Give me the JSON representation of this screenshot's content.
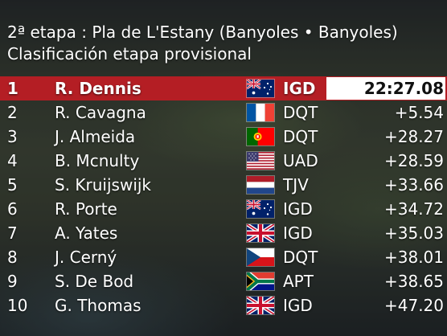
{
  "header": {
    "stage": "2ª etapa : Pla de L'Estany (Banyoles • Banyoles)",
    "classification": "Clasificación etapa provisional"
  },
  "colors": {
    "leader_background": "#b41e24",
    "time_box": "#ffffff"
  },
  "riders": [
    {
      "position": "1",
      "name": "R. Dennis",
      "flag": "australia-flag-icon",
      "team": "IGD",
      "time": "22:27.08"
    },
    {
      "position": "2",
      "name": "R. Cavagna",
      "flag": "france-flag-icon",
      "team": "DQT",
      "time": "+5.54"
    },
    {
      "position": "3",
      "name": "J. Almeida",
      "flag": "portugal-flag-icon",
      "team": "DQT",
      "time": "+28.27"
    },
    {
      "position": "4",
      "name": "B. Mcnulty",
      "flag": "usa-flag-icon",
      "team": "UAD",
      "time": "+28.59"
    },
    {
      "position": "5",
      "name": "S. Kruijswijk",
      "flag": "netherlands-flag-icon",
      "team": "TJV",
      "time": "+33.66"
    },
    {
      "position": "6",
      "name": "R. Porte",
      "flag": "australia-flag-icon",
      "team": "IGD",
      "time": "+34.72"
    },
    {
      "position": "7",
      "name": "A. Yates",
      "flag": "uk-flag-icon",
      "team": "IGD",
      "time": "+35.03"
    },
    {
      "position": "8",
      "name": "J. Cerný",
      "flag": "czech-flag-icon",
      "team": "DQT",
      "time": "+38.01"
    },
    {
      "position": "9",
      "name": "S. De Bod",
      "flag": "south-africa-flag-icon",
      "team": "APT",
      "time": "+38.65"
    },
    {
      "position": "10",
      "name": "G. Thomas",
      "flag": "uk-flag-icon",
      "team": "IGD",
      "time": "+47.20"
    }
  ]
}
